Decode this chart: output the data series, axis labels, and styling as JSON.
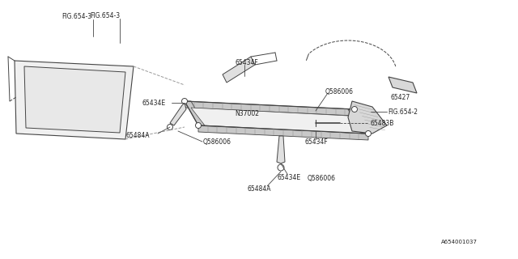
{
  "bg_color": "#ffffff",
  "line_color": "#999999",
  "dark_line": "#444444",
  "hatch_color": "#aaaaaa",
  "text_color": "#222222",
  "fig_size": [
    6.4,
    3.2
  ],
  "dpi": 100,
  "labels": {
    "fig654_3": "FIG.654-3",
    "fig654_2": "FIG.654-2",
    "65434F_top": "65434F",
    "65434F_right": "65434F",
    "65434E_left": "65434E",
    "65434E_bottom": "65434E",
    "65427": "65427",
    "Q586006_top": "Q586006",
    "Q586006_left": "Q586006",
    "Q586006_bottom": "Q586006",
    "N37002": "N37002",
    "65484A_left": "65484A",
    "65484A_bottom": "65484A",
    "65483B": "65483B",
    "part_id": "A654001037"
  }
}
